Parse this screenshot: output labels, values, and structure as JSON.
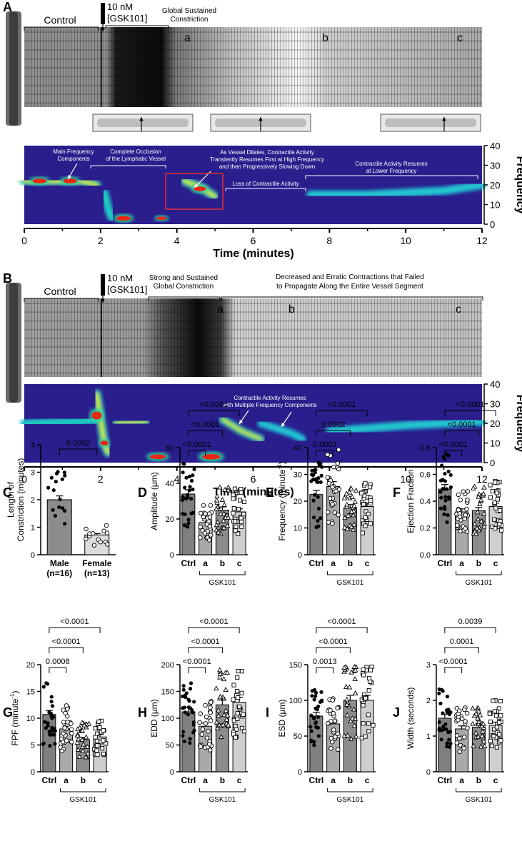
{
  "panelA": {
    "letter": "A",
    "control_label": "Control",
    "dose_line1": "10 nM",
    "dose_line2": "[GSK101]",
    "constriction_line1": "Global Sustained",
    "constriction_line2": "Constriction",
    "marks": [
      "a",
      "b",
      "c"
    ],
    "annotations": {
      "main_freq_1": "Main Frequency",
      "main_freq_2": "Components",
      "occlusion_1": "Complete Occlusion",
      "occlusion_2": "of the Lymphatic Vessel",
      "dilates_1": "As Vessel Dilates, Contractile Activity",
      "dilates_2": "Transiently Resumes First at High Frequency",
      "dilates_3": "and then Progressively Slowing Down",
      "resumes_1": "Contractile Activity Resumes",
      "resumes_2": "at Lower Frequency",
      "loss": "Loss of Contractile Activity"
    },
    "y_axis_label": "Frequency",
    "y_ticks": [
      "40",
      "30",
      "20",
      "10",
      "0"
    ],
    "x_ticks": [
      "0",
      "2",
      "4",
      "6",
      "8",
      "10",
      "12"
    ],
    "x_axis_label": "Time (minutes)"
  },
  "panelB": {
    "letter": "B",
    "control_label": "Control",
    "dose_line1": "10 nM",
    "dose_line2": "[GSK101]",
    "constriction_line1": "Strong and Sustained",
    "constriction_line2": "Global Constriction",
    "decreased_1": "Decreased and Erratic Contractions that Failed",
    "decreased_2": "to Propagate Along the Entire Vessel Segment",
    "marks": [
      "a",
      "b",
      "c"
    ],
    "resumes_1": "Contractile Activity Resumes",
    "resumes_2": "with Multiple Frequency Components",
    "y_axis_label": "Frequency",
    "y_ticks": [
      "40",
      "30",
      "20",
      "10",
      "0"
    ],
    "x_ticks": [
      "0",
      "2",
      "4",
      "6",
      "8",
      "10",
      "12"
    ],
    "x_axis_label": "Time (minutes)"
  },
  "chart_data": [
    {
      "panel": "C",
      "type": "bar",
      "categories": [
        "Male\n(n=16)",
        "Female\n(n=13)"
      ],
      "values": [
        2.0,
        0.72
      ],
      "ylabel": "Length of Constriction (minutes)",
      "ylim": [
        0,
        4
      ],
      "yticks": [
        "0",
        "1",
        "2",
        "3",
        "4"
      ],
      "comparisons": [
        {
          "from": 0,
          "to": 1,
          "label": "0.0002"
        }
      ]
    },
    {
      "panel": "D",
      "type": "bar",
      "categories": [
        "Ctrl",
        "a",
        "b",
        "c"
      ],
      "values": [
        34,
        18,
        25,
        24
      ],
      "ylabel": "Amplitude (μm)",
      "ylim": [
        0,
        60
      ],
      "yticks": [
        "0",
        "20",
        "40",
        "60"
      ],
      "group_label": "GSK101",
      "comparisons": [
        {
          "from": 0,
          "to": 1,
          "label": "<0.0001"
        },
        {
          "from": 0,
          "to": 2,
          "label": "<0.0001"
        },
        {
          "from": 0,
          "to": 3,
          "label": "<0.0001"
        }
      ]
    },
    {
      "panel": "E",
      "type": "bar",
      "categories": [
        "Ctrl",
        "a",
        "b",
        "c"
      ],
      "values": [
        22.5,
        25.5,
        17.5,
        18
      ],
      "ylabel": "Frequency (minute-1)",
      "ylim": [
        0,
        40
      ],
      "yticks": [
        "0",
        "10",
        "20",
        "30",
        "40"
      ],
      "group_label": "GSK101",
      "comparisons": [
        {
          "from": 0,
          "to": 1,
          "label": "0.0003"
        },
        {
          "from": 0,
          "to": 2,
          "label": "0.0002"
        },
        {
          "from": 0,
          "to": 3,
          "label": "<0.0001"
        }
      ]
    },
    {
      "panel": "F",
      "type": "bar",
      "categories": [
        "Ctrl",
        "a",
        "b",
        "c"
      ],
      "values": [
        0.49,
        0.32,
        0.33,
        0.36
      ],
      "ylabel": "Ejection Fraction",
      "ylim": [
        0,
        0.8
      ],
      "yticks": [
        "0.0",
        "0.2",
        "0.4",
        "0.6",
        "0.8"
      ],
      "group_label": "GSK101",
      "comparisons": [
        {
          "from": 0,
          "to": 1,
          "label": "<0.0001"
        },
        {
          "from": 0,
          "to": 2,
          "label": "<0.0001"
        },
        {
          "from": 0,
          "to": 3,
          "label": "<0.0001"
        }
      ]
    },
    {
      "panel": "G",
      "type": "bar",
      "categories": [
        "Ctrl",
        "a",
        "b",
        "c"
      ],
      "values": [
        10.7,
        8,
        6,
        6.5
      ],
      "ylabel": "FPF (minute-1)",
      "ylim": [
        0,
        20
      ],
      "yticks": [
        "0",
        "5",
        "10",
        "15",
        "20"
      ],
      "group_label": "GSK101",
      "comparisons": [
        {
          "from": 0,
          "to": 1,
          "label": "0.0008"
        },
        {
          "from": 0,
          "to": 2,
          "label": "<0.0001"
        },
        {
          "from": 0,
          "to": 3,
          "label": "<0.0001"
        }
      ]
    },
    {
      "panel": "H",
      "type": "bar",
      "categories": [
        "Ctrl",
        "a",
        "b",
        "c"
      ],
      "values": [
        112,
        85,
        125,
        130
      ],
      "ylabel": "EDD (μm)",
      "ylim": [
        0,
        200
      ],
      "yticks": [
        "0",
        "50",
        "100",
        "150",
        "200"
      ],
      "group_label": "GSK101",
      "comparisons": [
        {
          "from": 0,
          "to": 1,
          "label": "<0.0001"
        },
        {
          "from": 0,
          "to": 2,
          "label": "<0.0001"
        },
        {
          "from": 0,
          "to": 3,
          "label": "<0.0001"
        }
      ]
    },
    {
      "panel": "I",
      "type": "bar",
      "categories": [
        "Ctrl",
        "a",
        "b",
        "c"
      ],
      "values": [
        78,
        67,
        100,
        100
      ],
      "ylabel": "ESD (μm)",
      "ylim": [
        0,
        150
      ],
      "yticks": [
        "0",
        "50",
        "100",
        "150"
      ],
      "group_label": "GSK101",
      "comparisons": [
        {
          "from": 0,
          "to": 1,
          "label": "0.0013"
        },
        {
          "from": 0,
          "to": 2,
          "label": "<0.0001"
        },
        {
          "from": 0,
          "to": 3,
          "label": "<0.0001"
        }
      ]
    },
    {
      "panel": "J",
      "type": "bar",
      "categories": [
        "Ctrl",
        "a",
        "b",
        "c"
      ],
      "values": [
        1.5,
        1.2,
        1.25,
        1.3
      ],
      "ylabel": "Width (seconds)",
      "ylim": [
        0,
        3
      ],
      "yticks": [
        "0",
        "1",
        "2",
        "3"
      ],
      "group_label": "GSK101",
      "comparisons": [
        {
          "from": 0,
          "to": 1,
          "label": "<0.0001"
        },
        {
          "from": 0,
          "to": 2,
          "label": "0.0001"
        },
        {
          "from": 0,
          "to": 3,
          "label": "0.0039"
        }
      ]
    }
  ]
}
